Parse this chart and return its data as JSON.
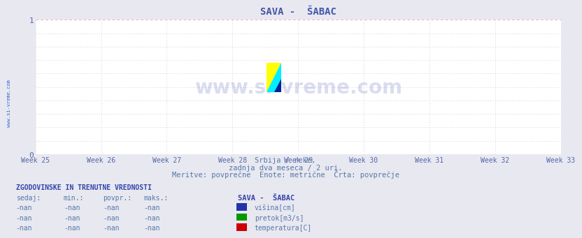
{
  "title": "SAVA -  ŠABAC",
  "title_color": "#4455aa",
  "bg_color": "#e8e8f0",
  "plot_bg_color": "#ffffff",
  "grid_color_major": "#ffaaaa",
  "grid_color_minor": "#ccccdd",
  "xlim": [
    0,
    8
  ],
  "ylim": [
    0,
    1
  ],
  "x_ticks": [
    0,
    1,
    2,
    3,
    4,
    5,
    6,
    7,
    8
  ],
  "x_tick_labels": [
    "Week 25",
    "Week 26",
    "Week 27",
    "Week 28",
    "Week 29",
    "Week 30",
    "Week 31",
    "Week 32",
    "Week 33"
  ],
  "y_ticks": [
    0,
    1
  ],
  "y_tick_labels": [
    "0",
    "1"
  ],
  "subtitle1": "Srbija / reke,",
  "subtitle2": "zadnja dva meseca / 2 uri.",
  "subtitle3": "Meritve: povprečne  Enote: metrične  Črta: povprečje",
  "subtitle_color": "#5577aa",
  "watermark_text": "www.si-vreme.com",
  "watermark_color": "#3344aa",
  "watermark_alpha": 0.18,
  "sidebar_text": "www.si-vreme.com",
  "sidebar_color": "#3366cc",
  "axis_color": "#4444cc",
  "tick_color": "#5566aa",
  "legend_title": "ZGODOVINSKE IN TRENUTNE VREDNOSTI",
  "legend_title_color": "#3344aa",
  "legend_header": [
    "sedaj:",
    "min.:",
    "povpr.:",
    "maks.:"
  ],
  "legend_station": "SAVA -  ŠABAC",
  "legend_rows": [
    [
      "-nan",
      "-nan",
      "-nan",
      "-nan",
      "#2233aa",
      "višina[cm]"
    ],
    [
      "-nan",
      "-nan",
      "-nan",
      "-nan",
      "#009900",
      "pretok[m3/s]"
    ],
    [
      "-nan",
      "-nan",
      "-nan",
      "-nan",
      "#cc0000",
      "temperatura[C]"
    ]
  ],
  "logo_yellow": "#ffff00",
  "logo_cyan": "#00eeff",
  "logo_blue": "#002299"
}
